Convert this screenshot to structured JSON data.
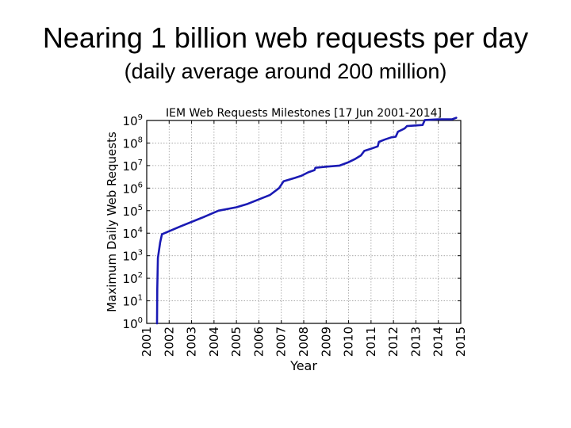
{
  "slide": {
    "title": "Nearing 1 billion web requests per day",
    "subtitle": "(daily average around 200 million)"
  },
  "chart_data": {
    "type": "line",
    "title": "IEM Web Requests Milestones [17 Jun 2001-2014]",
    "xlabel": "Year",
    "ylabel": "Maximum Daily Web Requests",
    "yscale": "log",
    "grid": true,
    "xlim": [
      2001,
      2015
    ],
    "ylim_exponents": [
      0,
      9
    ],
    "x_ticks": [
      "2001",
      "2002",
      "2003",
      "2004",
      "2005",
      "2006",
      "2007",
      "2008",
      "2009",
      "2010",
      "2011",
      "2012",
      "2013",
      "2014",
      "2015"
    ],
    "y_ticks": [
      {
        "base": "10",
        "exp": "0"
      },
      {
        "base": "10",
        "exp": "1"
      },
      {
        "base": "10",
        "exp": "2"
      },
      {
        "base": "10",
        "exp": "3"
      },
      {
        "base": "10",
        "exp": "4"
      },
      {
        "base": "10",
        "exp": "5"
      },
      {
        "base": "10",
        "exp": "6"
      },
      {
        "base": "10",
        "exp": "7"
      },
      {
        "base": "10",
        "exp": "8"
      },
      {
        "base": "10",
        "exp": "9"
      }
    ],
    "series": [
      {
        "name": "Maximum Daily Web Requests",
        "color": "#1a1ab4",
        "points": [
          [
            2001.46,
            0
          ],
          [
            2001.47,
            1.5
          ],
          [
            2001.5,
            2.9
          ],
          [
            2001.6,
            3.6
          ],
          [
            2001.68,
            3.95
          ],
          [
            2002.5,
            4.3
          ],
          [
            2003.5,
            4.7
          ],
          [
            2004.2,
            5.0
          ],
          [
            2005.0,
            5.15
          ],
          [
            2005.5,
            5.3
          ],
          [
            2006.0,
            5.5
          ],
          [
            2006.5,
            5.7
          ],
          [
            2006.9,
            6.0
          ],
          [
            2007.1,
            6.3
          ],
          [
            2007.6,
            6.45
          ],
          [
            2007.9,
            6.55
          ],
          [
            2008.2,
            6.7
          ],
          [
            2008.48,
            6.8
          ],
          [
            2008.52,
            6.9
          ],
          [
            2009.0,
            6.95
          ],
          [
            2009.6,
            7.0
          ],
          [
            2010.0,
            7.15
          ],
          [
            2010.3,
            7.3
          ],
          [
            2010.55,
            7.45
          ],
          [
            2010.7,
            7.65
          ],
          [
            2011.0,
            7.75
          ],
          [
            2011.3,
            7.85
          ],
          [
            2011.35,
            8.05
          ],
          [
            2011.6,
            8.15
          ],
          [
            2011.9,
            8.25
          ],
          [
            2012.1,
            8.28
          ],
          [
            2012.2,
            8.5
          ],
          [
            2012.5,
            8.65
          ],
          [
            2012.6,
            8.75
          ],
          [
            2013.3,
            8.8
          ],
          [
            2013.4,
            9.02
          ],
          [
            2014.0,
            9.05
          ],
          [
            2014.6,
            9.05
          ],
          [
            2014.8,
            9.12
          ]
        ]
      }
    ]
  }
}
